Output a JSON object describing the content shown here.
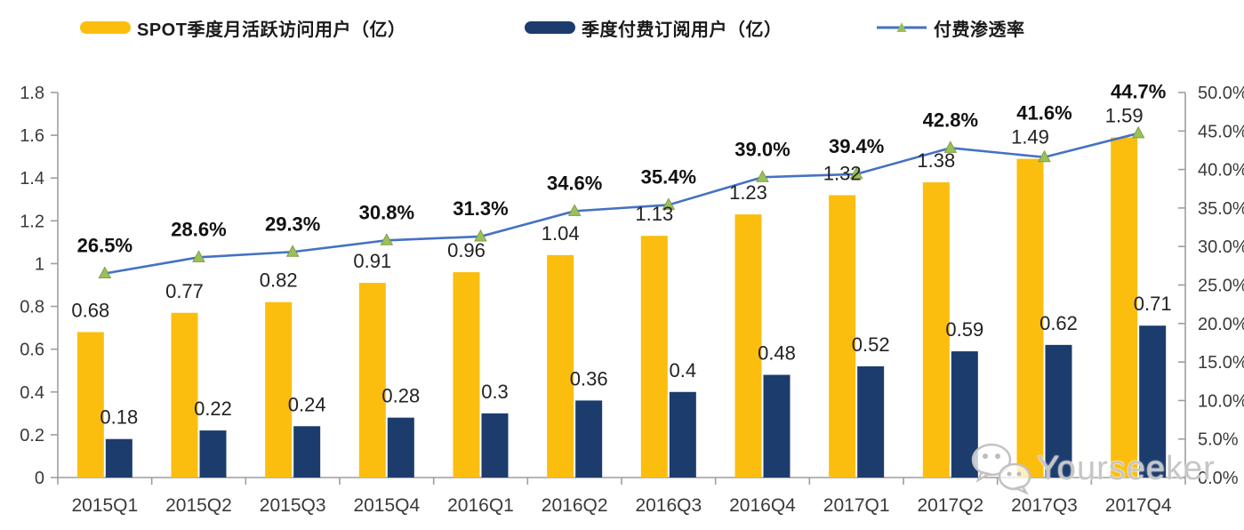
{
  "legend": {
    "items": [
      {
        "label": "SPOT季度月活跃访问用户（亿）",
        "swatch": "bar",
        "color": "#FBBE0F"
      },
      {
        "label": "季度付费订阅用户（亿）",
        "swatch": "bar",
        "color": "#1C3C6E"
      },
      {
        "label": "付费渗透率",
        "swatch": "line",
        "color": "#4472C4",
        "marker_color": "#9BC05A"
      }
    ]
  },
  "chart_data": {
    "type": "bar+line",
    "categories": [
      "2015Q1",
      "2015Q2",
      "2015Q3",
      "2015Q4",
      "2016Q1",
      "2016Q2",
      "2016Q3",
      "2016Q4",
      "2017Q1",
      "2017Q2",
      "2017Q3",
      "2017Q4"
    ],
    "series": [
      {
        "name": "SPOT季度月活跃访问用户（亿）",
        "type": "bar",
        "axis": "left",
        "color": "#FBBE0F",
        "values": [
          0.68,
          0.77,
          0.82,
          0.91,
          0.96,
          1.04,
          1.13,
          1.23,
          1.32,
          1.38,
          1.49,
          1.59
        ]
      },
      {
        "name": "季度付费订阅用户（亿）",
        "type": "bar",
        "axis": "left",
        "color": "#1C3C6E",
        "values": [
          0.18,
          0.22,
          0.24,
          0.28,
          0.3,
          0.36,
          0.4,
          0.48,
          0.52,
          0.59,
          0.62,
          0.71
        ]
      },
      {
        "name": "付费渗透率",
        "type": "line",
        "axis": "right",
        "color": "#4472C4",
        "marker": "triangle",
        "marker_color": "#9BC05A",
        "marker_edge": "#7E9F44",
        "values": [
          26.5,
          28.6,
          29.3,
          30.8,
          31.3,
          34.6,
          35.4,
          39.0,
          39.4,
          42.8,
          41.6,
          44.7
        ],
        "labels": [
          "26.5%",
          "28.6%",
          "29.3%",
          "30.8%",
          "31.3%",
          "34.6%",
          "35.4%",
          "39.0%",
          "39.4%",
          "42.8%",
          "41.6%",
          "44.7%"
        ]
      }
    ],
    "left_axis": {
      "min": 0,
      "max": 1.8,
      "ticks": [
        "0",
        "0.2",
        "0.4",
        "0.6",
        "0.8",
        "1",
        "1.2",
        "1.4",
        "1.6",
        "1.8"
      ]
    },
    "right_axis": {
      "min": 0,
      "max": 50,
      "ticks": [
        "0.0%",
        "5.0%",
        "10.0%",
        "15.0%",
        "20.0%",
        "25.0%",
        "30.0%",
        "35.0%",
        "40.0%",
        "45.0%",
        "50.0%"
      ]
    },
    "grid": false,
    "legend_position": "top",
    "axis_color": "#9e9e9e"
  },
  "watermark": {
    "text": "Yourseeker",
    "icon": "wechat-icon"
  }
}
